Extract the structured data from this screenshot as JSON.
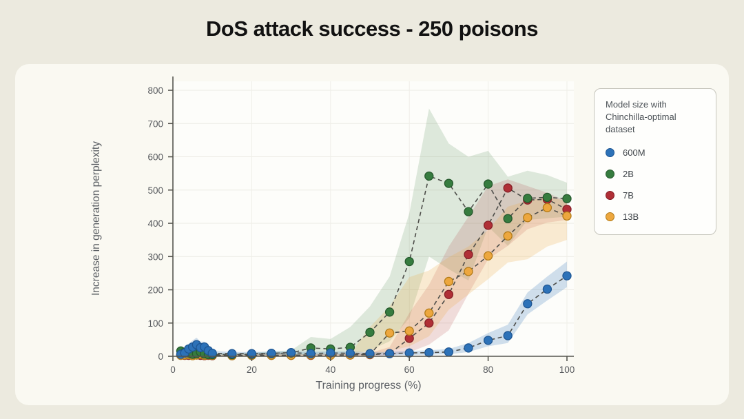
{
  "page": {
    "title": "DoS attack success - 250 poisons"
  },
  "chart_data": {
    "type": "line",
    "title": "DoS attack success - 250 poisons",
    "xlabel": "Training progress (%)",
    "ylabel": "Increase in generation perplexity",
    "xlim": [
      0,
      102
    ],
    "ylim": [
      0,
      800
    ],
    "xticks": [
      0,
      20,
      40,
      60,
      80,
      100
    ],
    "yticks": [
      0,
      100,
      200,
      300,
      400,
      500,
      600,
      700,
      800
    ],
    "grid": true,
    "line_style": "dashed-gray",
    "legend_position": "top-right",
    "legend_title": "Model size with Chinchilla-optimal dataset",
    "x": [
      2,
      3,
      4,
      5,
      6,
      7,
      8,
      9,
      10,
      15,
      20,
      25,
      30,
      35,
      40,
      45,
      50,
      55,
      60,
      65,
      70,
      75,
      80,
      85,
      90,
      95,
      100
    ],
    "series": [
      {
        "name": "600M",
        "color": "#2D72B8",
        "edge": "#1E5693",
        "band_opacity": 0.22,
        "values": [
          6,
          10,
          22,
          28,
          35,
          26,
          28,
          17,
          9,
          8,
          8,
          9,
          11,
          8,
          10,
          9,
          8,
          8,
          10,
          11,
          13,
          25,
          48,
          62,
          158,
          202,
          242
        ],
        "band_hi": [
          12,
          18,
          38,
          48,
          56,
          44,
          44,
          28,
          16,
          13,
          13,
          14,
          16,
          13,
          15,
          14,
          13,
          13,
          16,
          18,
          22,
          40,
          70,
          95,
          192,
          240,
          285
        ],
        "band_lo": [
          1,
          4,
          10,
          14,
          18,
          13,
          13,
          8,
          3,
          3,
          3,
          4,
          5,
          3,
          4,
          4,
          3,
          3,
          4,
          5,
          6,
          13,
          30,
          40,
          126,
          168,
          208
        ]
      },
      {
        "name": "2B",
        "color": "#367C3F",
        "edge": "#25582C",
        "band_opacity": 0.16,
        "values": [
          16,
          12,
          10,
          6,
          8,
          13,
          7,
          5,
          5,
          5,
          6,
          8,
          10,
          25,
          22,
          27,
          72,
          133,
          285,
          542,
          520,
          435,
          518,
          414,
          475,
          478,
          474
        ],
        "band_hi": [
          26,
          20,
          18,
          12,
          14,
          22,
          13,
          10,
          10,
          10,
          11,
          14,
          18,
          58,
          52,
          88,
          150,
          240,
          430,
          745,
          640,
          600,
          618,
          540,
          558,
          545,
          522
        ],
        "band_lo": [
          4,
          3,
          3,
          1,
          2,
          5,
          2,
          1,
          1,
          1,
          1,
          2,
          3,
          6,
          5,
          7,
          18,
          45,
          115,
          300,
          262,
          228,
          390,
          332,
          410,
          415,
          420
        ]
      },
      {
        "name": "7B",
        "color": "#B02F36",
        "edge": "#851F26",
        "band_opacity": 0.16,
        "values": [
          4,
          3,
          3,
          5,
          4,
          3,
          2,
          3,
          2,
          2,
          3,
          3,
          3,
          3,
          4,
          4,
          5,
          8,
          54,
          100,
          186,
          306,
          394,
          506,
          470,
          472,
          442
        ],
        "band_hi": [
          9,
          7,
          7,
          10,
          8,
          7,
          5,
          6,
          5,
          5,
          6,
          6,
          6,
          6,
          8,
          8,
          10,
          28,
          130,
          215,
          330,
          420,
          512,
          532,
          512,
          492,
          466
        ],
        "band_lo": [
          0,
          0,
          0,
          0,
          0,
          0,
          0,
          0,
          0,
          0,
          0,
          0,
          0,
          0,
          0,
          0,
          1,
          2,
          12,
          35,
          78,
          188,
          292,
          332,
          382,
          402,
          410
        ]
      },
      {
        "name": "13B",
        "color": "#EDA73E",
        "edge": "#B27A17",
        "band_opacity": 0.22,
        "values": [
          3,
          4,
          5,
          2,
          4,
          6,
          3,
          4,
          3,
          2,
          3,
          3,
          3,
          4,
          3,
          4,
          6,
          70,
          76,
          130,
          225,
          255,
          302,
          362,
          417,
          447,
          422
        ],
        "band_hi": [
          7,
          9,
          10,
          5,
          9,
          11,
          6,
          8,
          6,
          5,
          6,
          6,
          6,
          8,
          6,
          8,
          88,
          150,
          238,
          258,
          298,
          330,
          380,
          450,
          468,
          478,
          468
        ],
        "band_lo": [
          0,
          0,
          0,
          0,
          0,
          0,
          0,
          0,
          0,
          0,
          0,
          0,
          0,
          0,
          0,
          0,
          0,
          16,
          30,
          60,
          140,
          186,
          232,
          282,
          292,
          330,
          350
        ]
      }
    ]
  }
}
